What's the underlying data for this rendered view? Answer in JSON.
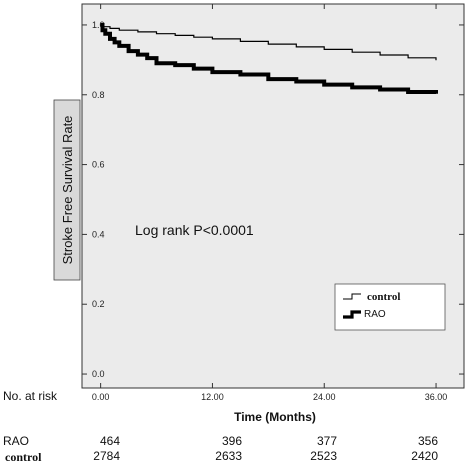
{
  "chart_data": {
    "type": "line",
    "ylabel": "Stroke Free Survival Rate",
    "xlabel": "Time (Months)",
    "annotation": "Log rank P<0.0001",
    "xlim": [
      -2,
      39
    ],
    "ylim": [
      -0.04,
      1.06
    ],
    "x_ticks": [
      0,
      12,
      24,
      36
    ],
    "x_tick_labels": [
      "0.00",
      "12.00",
      "24.00",
      "36.00"
    ],
    "y_ticks": [
      0.0,
      0.2,
      0.4,
      0.6,
      0.8,
      1.0
    ],
    "y_tick_labels": [
      "0.0",
      "0.2",
      "0.4",
      "0.6",
      "0.8",
      "1.0"
    ],
    "grid": false,
    "legend_position": "bottom-right",
    "series": [
      {
        "name": "control",
        "color": "#000000",
        "weight": "thin",
        "x": [
          0,
          0.3,
          1,
          2,
          4,
          6,
          8,
          10,
          12,
          15,
          18,
          21,
          24,
          27,
          30,
          33,
          36
        ],
        "y": [
          1.0,
          0.995,
          0.99,
          0.985,
          0.98,
          0.975,
          0.97,
          0.965,
          0.96,
          0.953,
          0.945,
          0.937,
          0.93,
          0.922,
          0.914,
          0.906,
          0.899
        ]
      },
      {
        "name": "RAO",
        "color": "#000000",
        "weight": "thick",
        "x": [
          0,
          0.2,
          0.5,
          1,
          1.5,
          2,
          3,
          4,
          5,
          6,
          8,
          10,
          12,
          15,
          18,
          21,
          24,
          27,
          30,
          33,
          36
        ],
        "y": [
          1.0,
          0.985,
          0.975,
          0.96,
          0.95,
          0.94,
          0.925,
          0.915,
          0.905,
          0.89,
          0.885,
          0.875,
          0.865,
          0.858,
          0.845,
          0.838,
          0.829,
          0.821,
          0.815,
          0.808,
          0.803
        ]
      }
    ]
  },
  "risk_table": {
    "header": "No. at risk",
    "rows": [
      {
        "label": "RAO",
        "values": [
          "464",
          "396",
          "377",
          "356"
        ]
      },
      {
        "label": "control",
        "values": [
          "2784",
          "2633",
          "2523",
          "2420"
        ]
      }
    ]
  }
}
